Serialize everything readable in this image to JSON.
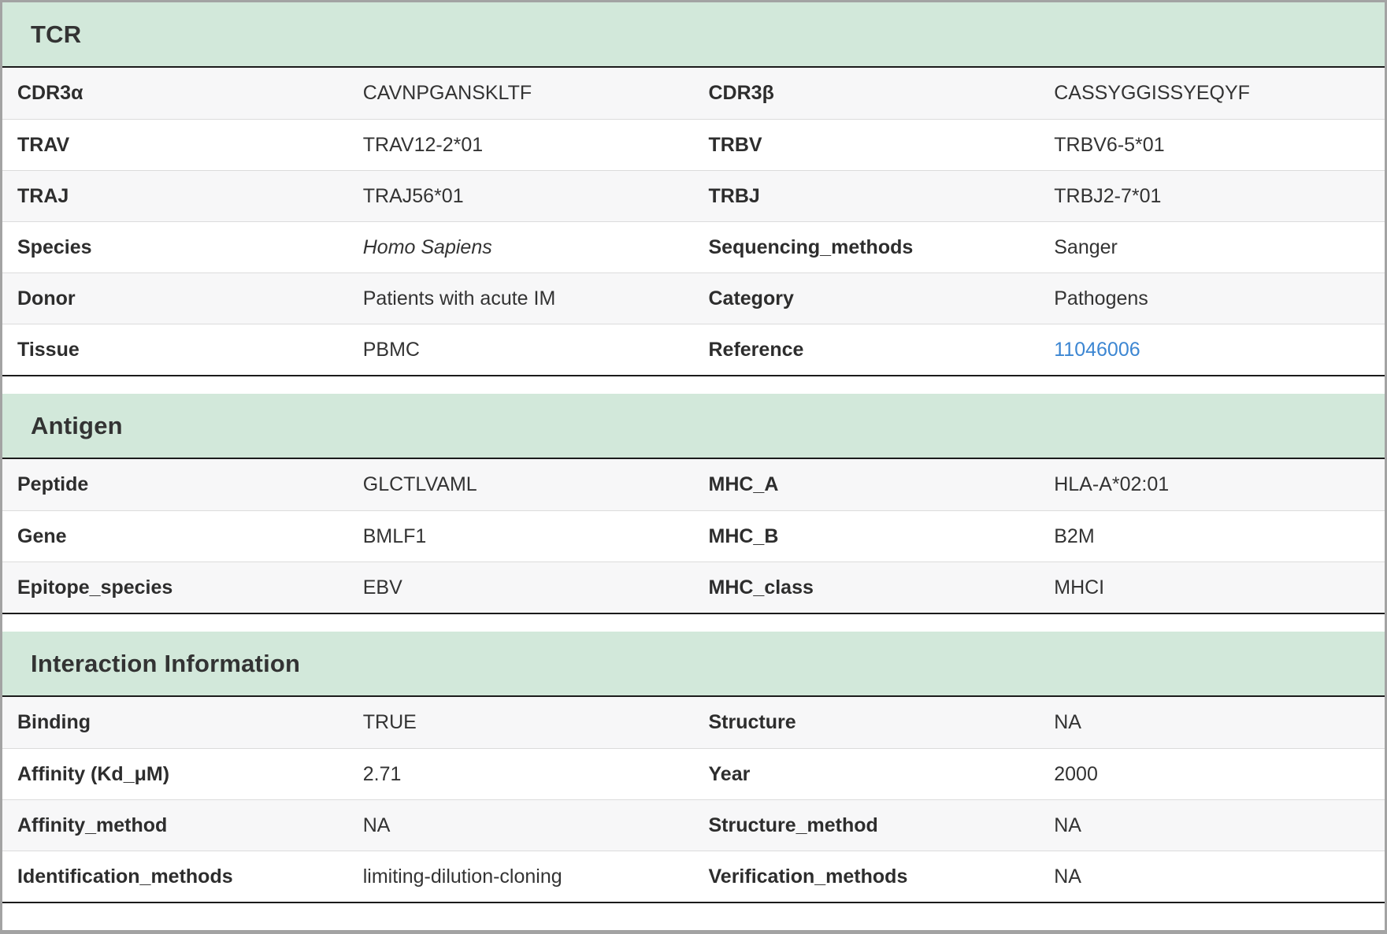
{
  "colors": {
    "section_header_bg": "#d2e8da",
    "link": "#3c86d2",
    "row_stripe": "#f7f7f8",
    "divider_dark": "#1b1b1b",
    "outer_border": "#a3a3a3"
  },
  "sections": {
    "tcr": {
      "title": "TCR",
      "rows": [
        {
          "l1": "CDR3α",
          "v1": "CAVNPGANSKLTF",
          "l2": "CDR3β",
          "v2": "CASSYGGISSYEQYF"
        },
        {
          "l1": "TRAV",
          "v1": "TRAV12-2*01",
          "l2": "TRBV",
          "v2": "TRBV6-5*01"
        },
        {
          "l1": "TRAJ",
          "v1": "TRAJ56*01",
          "l2": "TRBJ",
          "v2": "TRBJ2-7*01"
        },
        {
          "l1": "Species",
          "v1": "Homo Sapiens",
          "l2": "Sequencing_methods",
          "v2": "Sanger"
        },
        {
          "l1": "Donor",
          "v1": "Patients with acute IM",
          "l2": "Category",
          "v2": "Pathogens"
        },
        {
          "l1": "Tissue",
          "v1": "PBMC",
          "l2": "Reference",
          "v2": "11046006"
        }
      ]
    },
    "antigen": {
      "title": "Antigen",
      "rows": [
        {
          "l1": "Peptide",
          "v1": "GLCTLVAML",
          "l2": "MHC_A",
          "v2": "HLA-A*02:01"
        },
        {
          "l1": "Gene",
          "v1": "BMLF1",
          "l2": "MHC_B",
          "v2": "B2M"
        },
        {
          "l1": "Epitope_species",
          "v1": "EBV",
          "l2": "MHC_class",
          "v2": "MHCI"
        }
      ]
    },
    "interaction": {
      "title": "Interaction Information",
      "rows": [
        {
          "l1": "Binding",
          "v1": "TRUE",
          "l2": "Structure",
          "v2": "NA"
        },
        {
          "l1": "Affinity (Kd_μM)",
          "v1": "2.71",
          "l2": "Year",
          "v2": "2000"
        },
        {
          "l1": "Affinity_method",
          "v1": "NA",
          "l2": "Structure_method",
          "v2": "NA"
        },
        {
          "l1": "Identification_methods",
          "v1": "limiting-dilution-cloning",
          "l2": "Verification_methods",
          "v2": "NA"
        }
      ]
    }
  }
}
